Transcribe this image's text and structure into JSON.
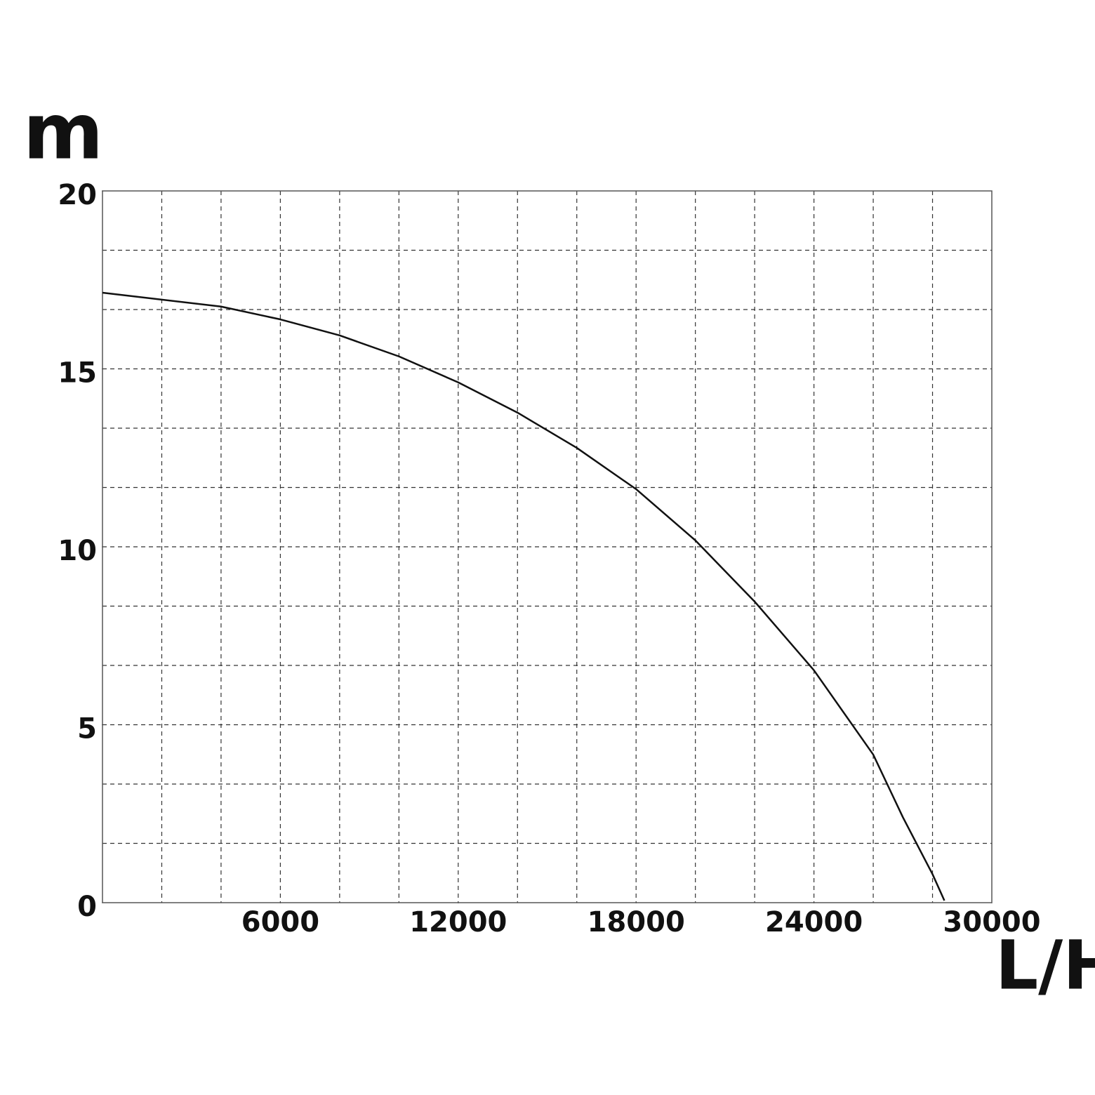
{
  "chart_data": {
    "type": "line",
    "y_label": "m",
    "x_label": "L/H",
    "xlim": [
      0,
      30000
    ],
    "ylim": [
      0,
      20
    ],
    "xticks": [
      6000,
      12000,
      18000,
      24000,
      30000
    ],
    "yticks": [
      0,
      5,
      10,
      15,
      20
    ],
    "xgrid": [
      2000,
      4000,
      6000,
      8000,
      10000,
      12000,
      14000,
      16000,
      18000,
      20000,
      22000,
      24000,
      26000,
      28000
    ],
    "ygrid": [
      1.667,
      3.333,
      5,
      6.667,
      8.333,
      10,
      11.667,
      13.333,
      15,
      16.667,
      18.333
    ],
    "grid": true,
    "series": [
      {
        "color": "#111111",
        "x": [
          0,
          4000,
          6000,
          8000,
          10000,
          12000,
          14000,
          16000,
          18000,
          20000,
          22000,
          24000,
          26000,
          27000,
          28000,
          28400
        ],
        "values": [
          17.14,
          16.75,
          16.39,
          15.94,
          15.35,
          14.62,
          13.77,
          12.78,
          11.62,
          10.18,
          8.46,
          6.53,
          4.16,
          2.4,
          0.8,
          0.06
        ]
      }
    ]
  }
}
